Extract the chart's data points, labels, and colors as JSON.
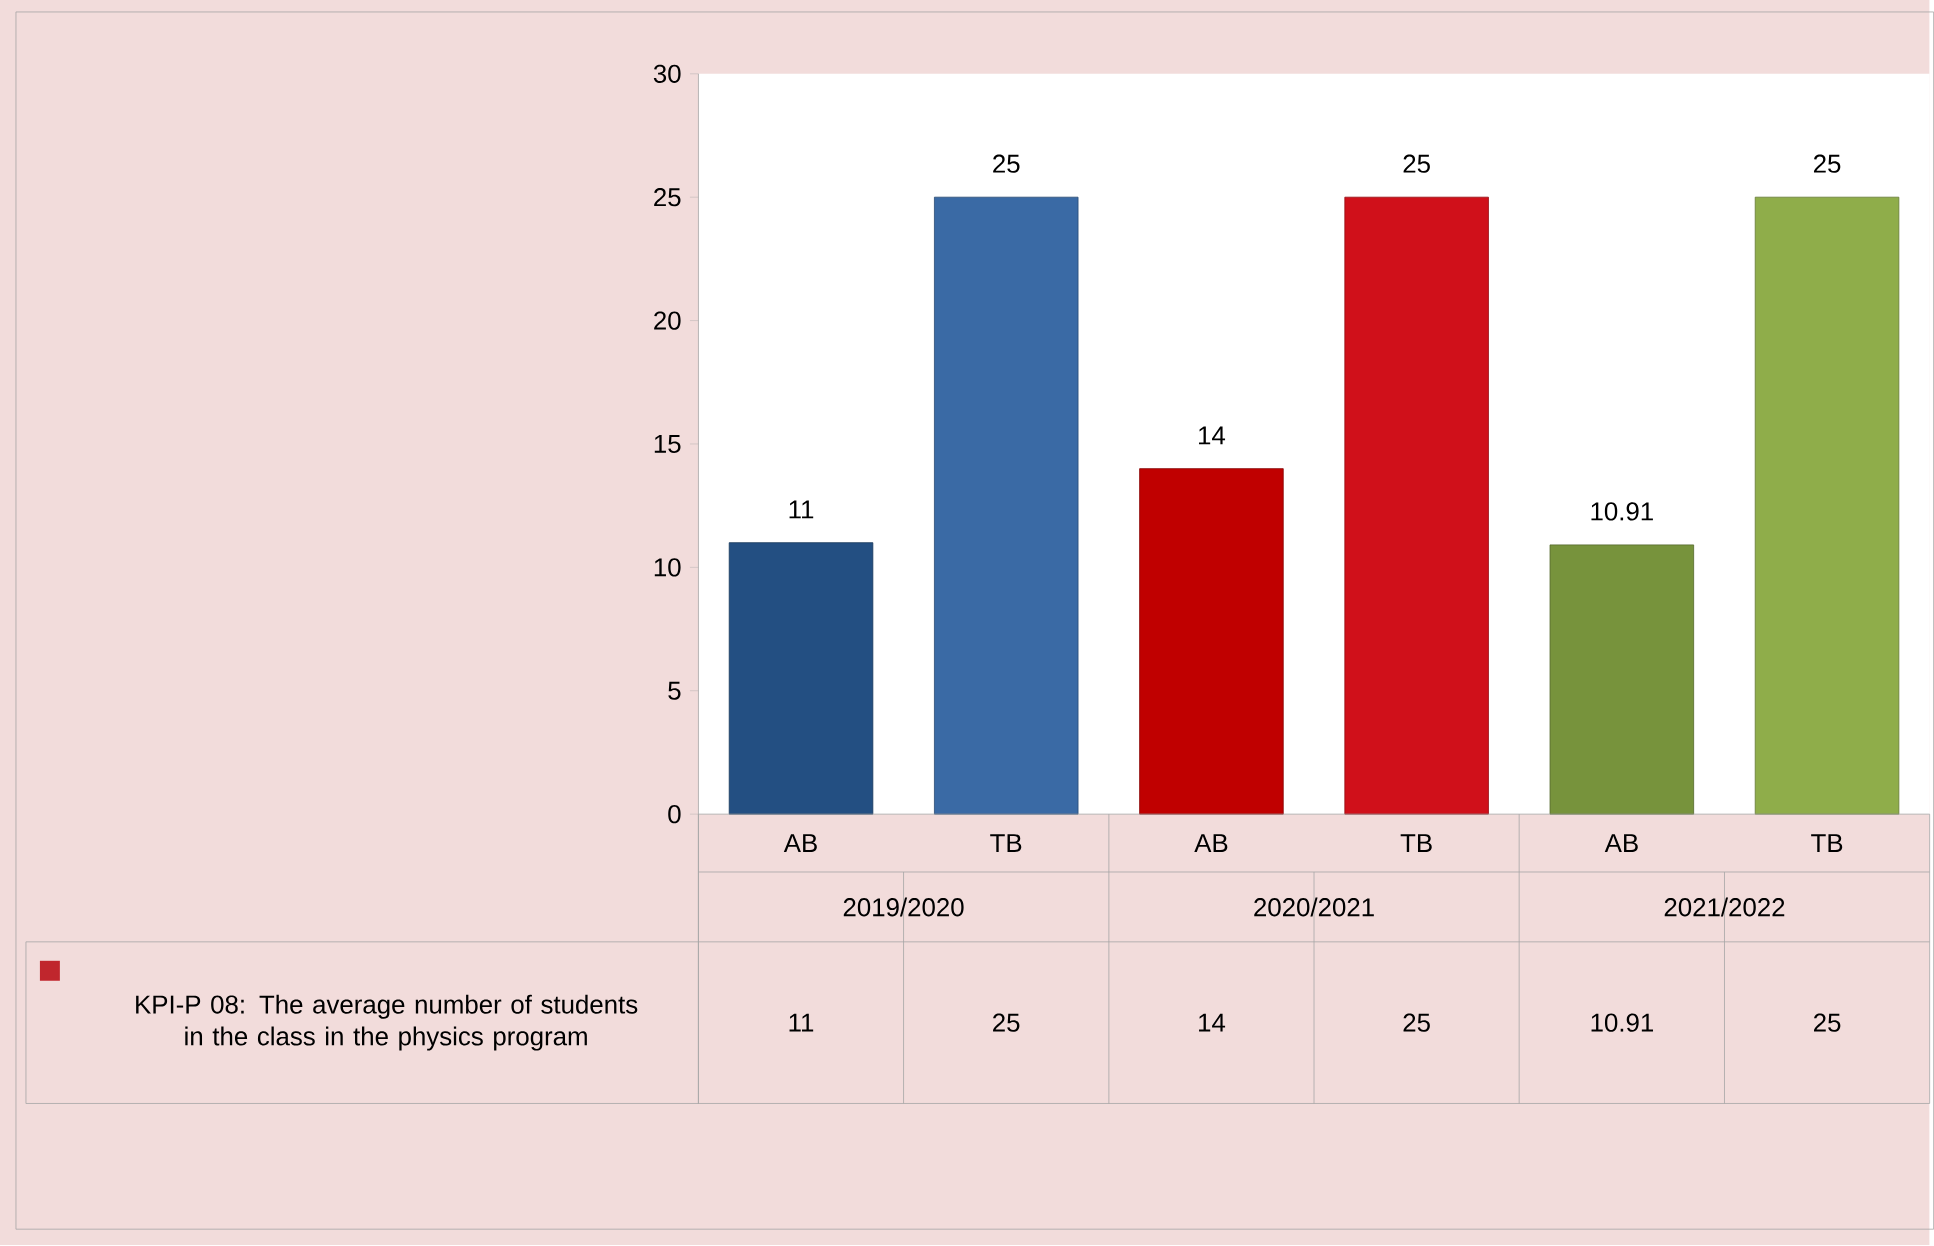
{
  "chart_data": {
    "type": "bar",
    "categories": [
      "AB",
      "TB",
      "AB",
      "TB",
      "AB",
      "TB"
    ],
    "series": [
      {
        "name": "KPI-P 08: The average number of students in the class in the physics program",
        "color": "#c0262d",
        "colors": [
          "#234f82",
          "#3a6aa5",
          "#c00000",
          "#d0101a",
          "#77933c",
          "#8fad4a"
        ],
        "values": [
          11,
          25,
          14,
          25,
          10.91,
          25
        ],
        "value_labels": [
          "11",
          "25",
          "14",
          "25",
          "10.91",
          "25"
        ]
      }
    ],
    "ylim": [
      0,
      30
    ],
    "yticks": [
      0,
      5,
      10,
      15,
      20,
      25,
      30
    ],
    "data_labels": true,
    "legend": "bottom left",
    "annotations": [
      "2019/2020",
      "2020/2021",
      "2021/2022"
    ]
  }
}
